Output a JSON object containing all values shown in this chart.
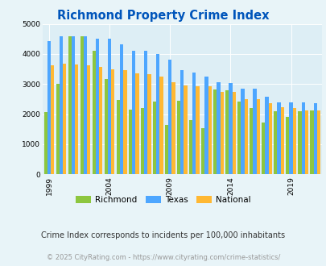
{
  "title": "Richmond Property Crime Index",
  "years": [
    1999,
    2000,
    2001,
    2002,
    2003,
    2004,
    2005,
    2006,
    2007,
    2008,
    2009,
    2010,
    2011,
    2012,
    2013,
    2014,
    2015,
    2016,
    2017,
    2018,
    2019,
    2020,
    2021
  ],
  "richmond": [
    2080,
    3020,
    4580,
    4600,
    4120,
    3180,
    2480,
    2160,
    2200,
    2420,
    1640,
    2450,
    1800,
    1520,
    2820,
    2800,
    2420,
    2190,
    1720,
    2100,
    1900,
    2100,
    2130
  ],
  "texas": [
    4420,
    4580,
    4580,
    4600,
    4500,
    4510,
    4320,
    4100,
    4120,
    4010,
    3800,
    3470,
    3380,
    3260,
    3050,
    3040,
    2850,
    2840,
    2580,
    2380,
    2380,
    2390,
    2370
  ],
  "national": [
    3620,
    3680,
    3650,
    3620,
    3580,
    3500,
    3470,
    3350,
    3330,
    3250,
    3060,
    2960,
    2940,
    2920,
    2750,
    2740,
    2510,
    2490,
    2360,
    2230,
    2200,
    2130,
    2120
  ],
  "richmond_color": "#8dc63f",
  "texas_color": "#4da6ff",
  "national_color": "#ffb833",
  "fig_bg_color": "#e8f4f8",
  "plot_bg_color": "#ddeef5",
  "ylim": [
    0,
    5000
  ],
  "yticks": [
    0,
    1000,
    2000,
    3000,
    4000,
    5000
  ],
  "xtick_labels": [
    "1999",
    "2004",
    "2009",
    "2014",
    "2019"
  ],
  "xtick_years": [
    1999,
    2004,
    2009,
    2014,
    2019
  ],
  "title_color": "#0055bb",
  "subtitle_text": "Crime Index corresponds to incidents per 100,000 inhabitants",
  "subtitle_color": "#333333",
  "footer_text": "© 2025 CityRating.com - https://www.cityrating.com/crime-statistics/",
  "footer_color": "#999999",
  "legend_labels": [
    "Richmond",
    "Texas",
    "National"
  ]
}
